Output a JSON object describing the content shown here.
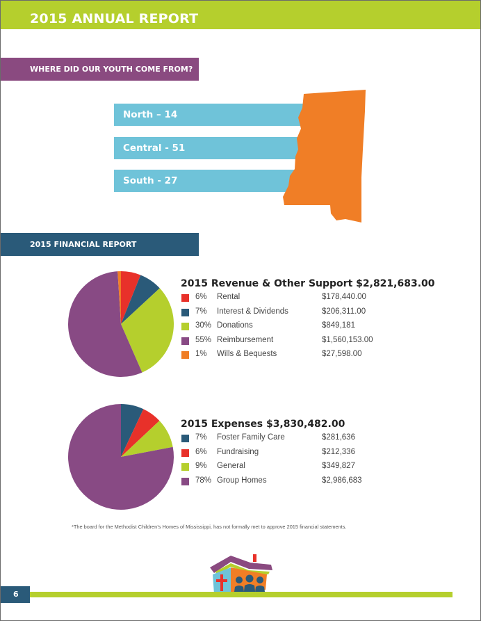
{
  "header": {
    "title": "2015 ANNUAL REPORT"
  },
  "youth_section": {
    "heading": "WHERE DID OUR YOUTH COME FROM?",
    "regions": [
      {
        "label": "North – 14"
      },
      {
        "label": "Central  - 51"
      },
      {
        "label": "South - 27"
      }
    ],
    "map_color": "#f07e26",
    "bar_color": "#6fc3d9"
  },
  "financial_section": {
    "heading": "2015 FINANCIAL REPORT"
  },
  "chart_data": [
    {
      "type": "pie",
      "title": "2015 Revenue & Other Support $2,821,683.00",
      "slices": [
        {
          "pct": "6%",
          "label": "Rental",
          "amount": "$178,440.00",
          "value": 6,
          "color": "#e8312a"
        },
        {
          "pct": "7%",
          "label": "Interest & Dividends",
          "amount": "$206,311.00",
          "value": 7,
          "color": "#2a5a79"
        },
        {
          "pct": "30%",
          "label": "Donations",
          "amount": "$849,181",
          "value": 30,
          "color": "#b5cf2d"
        },
        {
          "pct": "55%",
          "label": "Reimbursement",
          "amount": "$1,560,153.00",
          "value": 55,
          "color": "#884a84"
        },
        {
          "pct": "1%",
          "label": "Wills & Bequests",
          "amount": "$27,598.00",
          "value": 1,
          "color": "#f07e26"
        }
      ]
    },
    {
      "type": "pie",
      "title": "2015 Expenses $3,830,482.00",
      "slices": [
        {
          "pct": "7%",
          "label": "Foster Family Care",
          "amount": "$281,636",
          "value": 7,
          "color": "#2a5a79"
        },
        {
          "pct": "6%",
          "label": "Fundraising",
          "amount": "$212,336",
          "value": 6,
          "color": "#e8312a"
        },
        {
          "pct": "9%",
          "label": "General",
          "amount": "$349,827",
          "value": 9,
          "color": "#b5cf2d"
        },
        {
          "pct": "78%",
          "label": "Group Homes",
          "amount": "$2,986,683",
          "value": 78,
          "color": "#884a84"
        }
      ]
    }
  ],
  "footnote": "*The board for the Methodist Children’s Homes of Mississippi,  has not formally met to approve 2015 financial statements.",
  "footer": {
    "page_number": "6"
  }
}
